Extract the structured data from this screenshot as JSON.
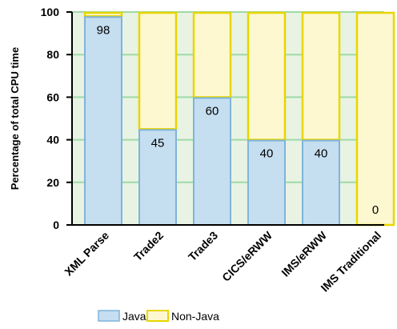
{
  "chart_data": {
    "type": "bar",
    "stacked": true,
    "categories": [
      "XML Parse",
      "Trade2",
      "Trade3",
      "CICS/eRWW",
      "IMS/eRWW",
      "IMS Traditional"
    ],
    "series": [
      {
        "name": "Java",
        "values": [
          98,
          45,
          60,
          40,
          40,
          0
        ],
        "fill": "#c5def0",
        "stroke": "#7fb4db"
      },
      {
        "name": "Non-Java",
        "values": [
          2,
          55,
          40,
          60,
          60,
          100
        ],
        "fill": "#fdf8d0",
        "stroke": "#e8d600"
      }
    ],
    "data_labels": [
      "98",
      "45",
      "60",
      "40",
      "40",
      "0"
    ],
    "ylabel": "Percentage of total CPU time",
    "xlabel": "",
    "ylim": [
      0,
      100
    ],
    "yticks": [
      0,
      20,
      40,
      60,
      80,
      100
    ],
    "grid": true,
    "plot_background": "#e8f3e3",
    "grid_color": "#9fd9a6",
    "legend_position": "bottom"
  }
}
